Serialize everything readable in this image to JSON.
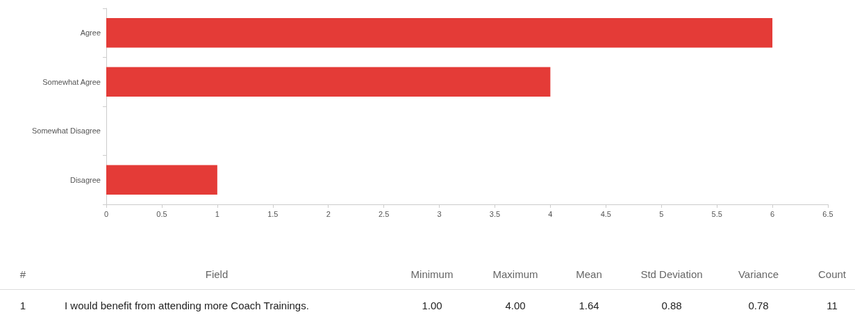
{
  "chart_data": {
    "type": "bar",
    "orientation": "horizontal",
    "categories": [
      "Agree",
      "Somewhat Agree",
      "Somewhat Disagree",
      "Disagree"
    ],
    "values": [
      6,
      4,
      0,
      1
    ],
    "color": "#e43b37",
    "xlim": [
      0,
      6.5
    ],
    "xticks": [
      0,
      0.5,
      1,
      1.5,
      2,
      2.5,
      3,
      3.5,
      4,
      4.5,
      5,
      5.5,
      6,
      6.5
    ],
    "grid": false,
    "annotations": [
      "#",
      "Field",
      "Minimum",
      "Maximum",
      "Mean",
      "Std Deviation",
      "Variance",
      "Count",
      "1",
      "I would benefit from attending more Coach Trainings.",
      "1.00",
      "4.00",
      "1.64",
      "0.88",
      "0.78",
      "11"
    ]
  }
}
